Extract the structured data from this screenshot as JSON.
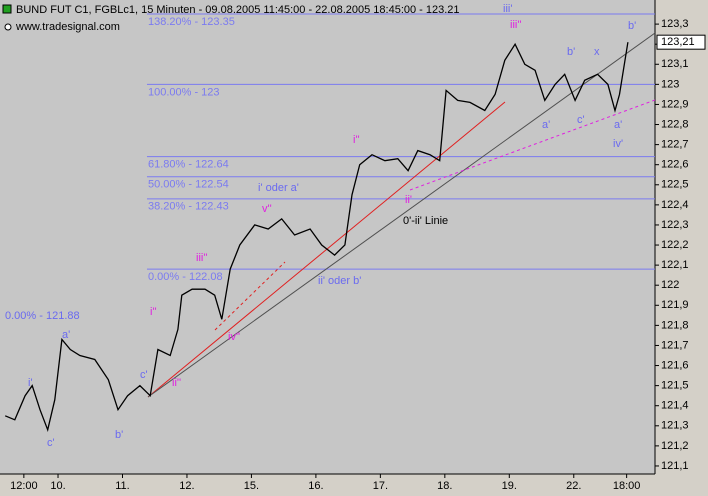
{
  "chart_data": {
    "type": "line",
    "title": "BUND FUT C1, FGBLc1, 15 Minuten - 09.08.2005 11:45:00 - 22.08.2005 18:45:00 - 123.21",
    "subtitle": "www.tradesignal.com",
    "x": [
      0.18,
      0.33,
      0.49,
      0.6,
      0.72,
      0.84,
      0.95,
      1.06,
      1.19,
      1.34,
      1.57,
      1.78,
      1.93,
      2.08,
      2.27,
      2.43,
      2.55,
      2.74,
      2.86,
      2.92,
      3.08,
      3.28,
      3.43,
      3.54,
      3.67,
      3.82,
      4.05,
      4.26,
      4.47,
      4.67,
      4.91,
      5.09,
      5.29,
      5.45,
      5.56,
      5.68,
      5.87,
      6.07,
      6.27,
      6.43,
      6.58,
      6.77,
      6.92,
      7.02,
      7.2,
      7.39,
      7.62,
      7.78,
      7.93,
      8.09,
      8.24,
      8.4,
      8.55,
      8.71,
      8.86,
      9.02,
      9.17,
      9.37,
      9.53,
      9.64,
      9.71,
      9.84
    ],
    "series": [
      {
        "name": "FGBLc1",
        "color": "#000000",
        "values": [
          121.35,
          121.33,
          121.45,
          121.5,
          121.38,
          121.28,
          121.43,
          121.73,
          121.68,
          121.65,
          121.63,
          121.53,
          121.38,
          121.45,
          121.5,
          121.45,
          121.68,
          121.65,
          121.78,
          121.95,
          121.98,
          121.98,
          121.95,
          121.83,
          122.08,
          122.2,
          122.3,
          122.28,
          122.33,
          122.25,
          122.28,
          122.2,
          122.15,
          122.2,
          122.45,
          122.6,
          122.65,
          122.62,
          122.63,
          122.57,
          122.67,
          122.65,
          122.62,
          122.97,
          122.92,
          122.91,
          122.87,
          122.95,
          123.12,
          123.2,
          123.1,
          123.07,
          122.92,
          123.0,
          123.05,
          122.92,
          123.02,
          123.05,
          123.0,
          122.87,
          122.95,
          123.21
        ]
      }
    ],
    "last_value": 123.21,
    "last_label": "123,21",
    "fib_start": 2.38,
    "fib_color": "#7b7bf0",
    "fib_levels": [
      {
        "label": "138.20% - 123.35",
        "value": 123.35
      },
      {
        "label": "100.00% - 123",
        "value": 123
      },
      {
        "label": "61.80% - 122.64",
        "value": 122.64
      },
      {
        "label": "50.00% - 122.54",
        "value": 122.54
      },
      {
        "label": "38.20% - 122.43",
        "value": 122.43
      },
      {
        "label": "0.00% - 122.08",
        "value": 122.08
      }
    ],
    "annotations": [
      "0.00% - 121.88",
      "i'",
      "c'",
      "a'",
      "b'",
      "c'",
      "ii''",
      "i''",
      "iii''",
      "iv''",
      "v''",
      "i' oder a'",
      "ii' oder b'",
      "i''",
      "ii'",
      "0'-ii' Linie",
      "iii''",
      "iii'",
      "b'",
      "x",
      "a'",
      "c'",
      "a'",
      "iv'",
      "b'"
    ],
    "xlim": [
      0.1,
      10.26
    ],
    "ylim": [
      121.06,
      123.42
    ],
    "xticks": [
      {
        "value": 0.47,
        "label": "12:00"
      },
      {
        "value": 1,
        "label": "10."
      },
      {
        "value": 2,
        "label": "11."
      },
      {
        "value": 3,
        "label": "12."
      },
      {
        "value": 4,
        "label": "15."
      },
      {
        "value": 5,
        "label": "16."
      },
      {
        "value": 6,
        "label": "17."
      },
      {
        "value": 7,
        "label": "18."
      },
      {
        "value": 8,
        "label": "19."
      },
      {
        "value": 9,
        "label": "22."
      },
      {
        "value": 9.82,
        "label": "18:00"
      }
    ],
    "yticks": [
      {
        "value": 123.3,
        "label": "123,3"
      },
      {
        "value": 123.2,
        "label": "123,2"
      },
      {
        "value": 123.1,
        "label": "123,1"
      },
      123,
      {
        "value": 122.9,
        "label": "122,9"
      },
      {
        "value": 122.8,
        "label": "122,8"
      },
      {
        "value": 122.7,
        "label": "122,7"
      },
      {
        "value": 122.6,
        "label": "122,6"
      },
      {
        "value": 122.5,
        "label": "122,5"
      },
      {
        "value": 122.4,
        "label": "122,4"
      },
      {
        "value": 122.3,
        "label": "122,3"
      },
      {
        "value": 122.2,
        "label": "122,2"
      },
      {
        "value": 122.1,
        "label": "122,1"
      },
      122,
      {
        "value": 121.9,
        "label": "121,9"
      },
      {
        "value": 121.8,
        "label": "121,8"
      },
      {
        "value": 121.7,
        "label": "121,7"
      },
      {
        "value": 121.6,
        "label": "121,6"
      },
      {
        "value": 121.5,
        "label": "121,5"
      },
      {
        "value": 121.4,
        "label": "121,4"
      },
      {
        "value": 121.3,
        "label": "121,3"
      },
      {
        "value": 121.2,
        "label": "121,2"
      },
      {
        "value": 121.1,
        "label": "121,1"
      }
    ]
  }
}
